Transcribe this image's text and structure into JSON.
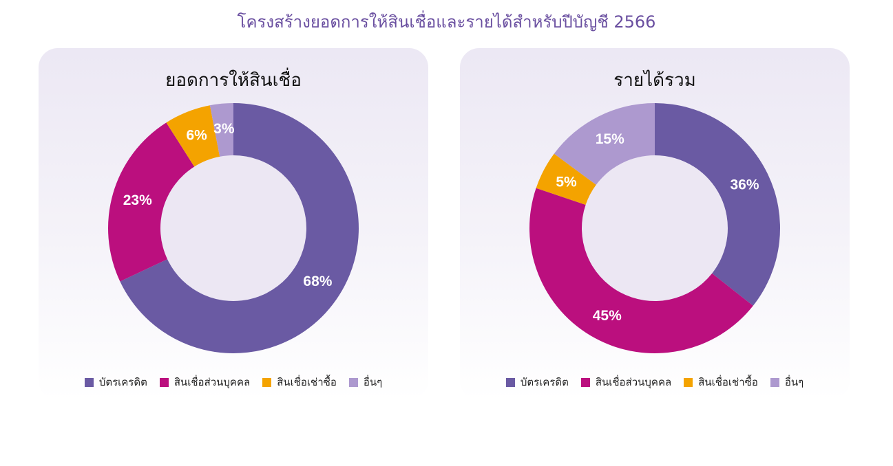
{
  "page": {
    "title": "โครงสร้างยอดการให้สินเชื่อและรายได้สำหรับปีบัญชี 2566"
  },
  "colors": {
    "title": "#6a4fa0",
    "donut_hole": "#ece7f3"
  },
  "legend": [
    {
      "label": "บัตรเครดิต",
      "color": "#6a5aa3"
    },
    {
      "label": "สินเชื่อส่วนบุคคล",
      "color": "#bb0f7e"
    },
    {
      "label": "สินเชื่อเช่าซื้อ",
      "color": "#f4a300"
    },
    {
      "label": "อื่นๆ",
      "color": "#ad99cf"
    }
  ],
  "chart_data": [
    {
      "type": "pie",
      "title": "ยอดการให้สินเชื่อ",
      "categories": [
        "บัตรเครดิต",
        "สินเชื่อส่วนบุคคล",
        "สินเชื่อเช่าซื้อ",
        "อื่นๆ"
      ],
      "values": [
        68,
        23,
        6,
        3
      ],
      "labels": [
        "68%",
        "23%",
        "6%",
        "3%"
      ],
      "colors": [
        "#6a5aa3",
        "#bb0f7e",
        "#f4a300",
        "#ad99cf"
      ],
      "legend_position": "bottom"
    },
    {
      "type": "pie",
      "title": "รายได้รวม",
      "categories": [
        "บัตรเครดิต",
        "สินเชื่อส่วนบุคคล",
        "สินเชื่อเช่าซื้อ",
        "อื่นๆ"
      ],
      "values": [
        36,
        45,
        5,
        15
      ],
      "labels": [
        "36%",
        "45%",
        "5%",
        "15%"
      ],
      "colors": [
        "#6a5aa3",
        "#bb0f7e",
        "#f4a300",
        "#ad99cf"
      ],
      "legend_position": "bottom"
    }
  ]
}
